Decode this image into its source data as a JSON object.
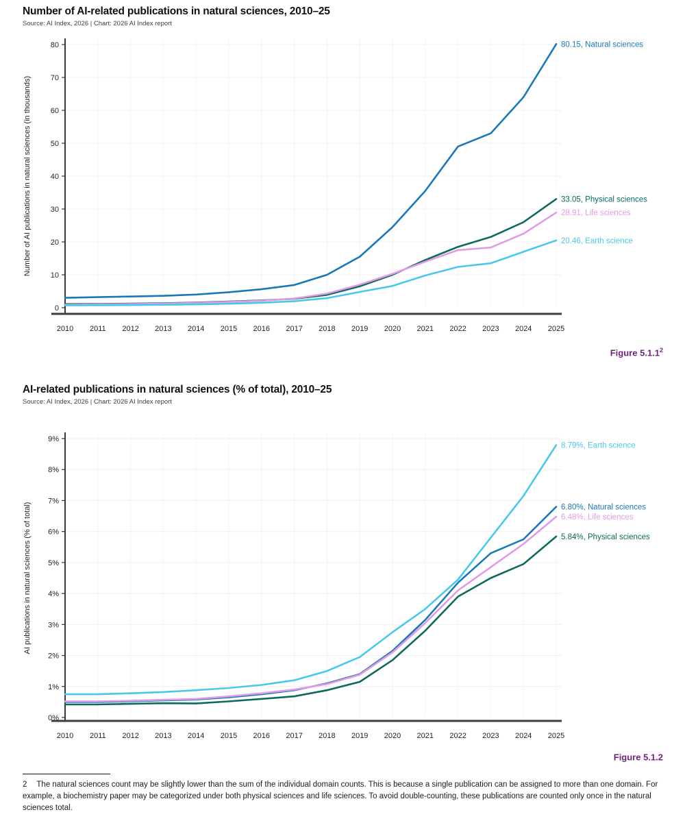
{
  "colors": {
    "natural_sciences": "#1878b8",
    "physical_sciences": "#0c6a5d",
    "life_sciences": "#e09be4",
    "earth_science": "#49c9ea",
    "figure_caption": "#71227e",
    "axis": "#333333",
    "gridline": "#f5eef1"
  },
  "figures": [
    {
      "title": "Number of AI-related publications in natural sciences, 2010–25",
      "source": "Source: AI Index, 2026 | Chart: 2026 AI Index report",
      "caption": "Figure 5.1.1",
      "caption_sup": "2",
      "chart_data": {
        "type": "line",
        "x": [
          2010,
          2011,
          2012,
          2013,
          2014,
          2015,
          2016,
          2017,
          2018,
          2019,
          2020,
          2021,
          2022,
          2023,
          2024,
          2025
        ],
        "ylabel": "Number of AI publications in natural sciences (in thousands)",
        "ylim": [
          0,
          80
        ],
        "yticks": [
          0,
          10,
          20,
          30,
          40,
          50,
          60,
          70,
          80
        ],
        "ytick_labels": [
          "0",
          "10",
          "20",
          "30",
          "40",
          "50",
          "60",
          "70",
          "80"
        ],
        "grid": true,
        "legend_position": "end-labels",
        "series": [
          {
            "name": "Natural sciences",
            "color": "#1878b8",
            "end_label": "80.15, Natural sciences",
            "values": [
              3.0,
              3.2,
              3.4,
              3.6,
              4.0,
              4.7,
              5.6,
              6.9,
              10.0,
              15.5,
              24.5,
              35.5,
              49.0,
              53.0,
              64.0,
              80.15
            ]
          },
          {
            "name": "Physical sciences",
            "color": "#0c6a5d",
            "end_label": "33.05, Physical sciences",
            "values": [
              1.1,
              1.15,
              1.25,
              1.35,
              1.55,
              1.85,
              2.2,
              2.7,
              3.9,
              6.5,
              10.0,
              14.5,
              18.5,
              21.5,
              26.0,
              33.05
            ]
          },
          {
            "name": "Life sciences",
            "color": "#e09be4",
            "end_label": "28.91, Life sciences",
            "values": [
              0.9,
              1.0,
              1.1,
              1.25,
              1.45,
              1.75,
              2.1,
              2.8,
              4.3,
              7.0,
              10.3,
              14.0,
              17.5,
              18.3,
              22.5,
              28.91
            ]
          },
          {
            "name": "Earth science",
            "color": "#49c9ea",
            "end_label": "20.46, Earth science",
            "values": [
              0.7,
              0.75,
              0.8,
              0.9,
              1.0,
              1.2,
              1.5,
              1.95,
              2.9,
              4.8,
              6.6,
              9.8,
              12.4,
              13.5,
              17.0,
              20.46
            ]
          }
        ]
      }
    },
    {
      "title": "AI-related publications in natural sciences (% of total), 2010–25",
      "source": "Source: AI Index, 2026 | Chart: 2026 AI Index report",
      "caption": "Figure 5.1.2",
      "caption_sup": "",
      "chart_data": {
        "type": "line",
        "x": [
          2010,
          2011,
          2012,
          2013,
          2014,
          2015,
          2016,
          2017,
          2018,
          2019,
          2020,
          2021,
          2022,
          2023,
          2024,
          2025
        ],
        "ylabel": "AI publications in natural sciences (% of total)",
        "ylim": [
          0,
          9
        ],
        "yticks": [
          0,
          1,
          2,
          3,
          4,
          5,
          6,
          7,
          8,
          9
        ],
        "ytick_labels": [
          "0%",
          "1%",
          "2%",
          "3%",
          "4%",
          "5%",
          "6%",
          "7%",
          "8%",
          "9%"
        ],
        "grid": true,
        "legend_position": "end-labels",
        "series": [
          {
            "name": "Earth science",
            "color": "#49c9ea",
            "end_label": "8.79%, Earth science",
            "values": [
              0.75,
              0.75,
              0.78,
              0.82,
              0.88,
              0.95,
              1.05,
              1.2,
              1.5,
              1.95,
              2.75,
              3.5,
              4.45,
              5.8,
              7.15,
              8.79
            ]
          },
          {
            "name": "Natural sciences",
            "color": "#1878b8",
            "end_label": "6.80%, Natural sciences",
            "values": [
              0.5,
              0.5,
              0.52,
              0.55,
              0.58,
              0.65,
              0.75,
              0.88,
              1.1,
              1.4,
              2.15,
              3.15,
              4.35,
              5.3,
              5.75,
              6.8
            ]
          },
          {
            "name": "Life sciences",
            "color": "#e09be4",
            "end_label": "6.48%, Life sciences",
            "values": [
              0.52,
              0.52,
              0.54,
              0.57,
              0.6,
              0.68,
              0.78,
              0.9,
              1.08,
              1.38,
              2.1,
              3.05,
              4.1,
              4.85,
              5.6,
              6.48
            ]
          },
          {
            "name": "Physical sciences",
            "color": "#0c6a5d",
            "end_label": "5.84%, Physical sciences",
            "values": [
              0.42,
              0.42,
              0.44,
              0.46,
              0.45,
              0.52,
              0.6,
              0.68,
              0.88,
              1.15,
              1.85,
              2.8,
              3.9,
              4.5,
              4.95,
              5.84
            ]
          }
        ]
      }
    }
  ],
  "footnote": {
    "marker": "2",
    "text": "The natural sciences count may be slightly lower than the sum of the individual domain counts. This is because a single publication can be assigned to more than one domain. For example, a biochemistry paper may be categorized under both physical sciences and life sciences. To avoid double-counting, these publications are counted only once in the natural sciences total."
  }
}
